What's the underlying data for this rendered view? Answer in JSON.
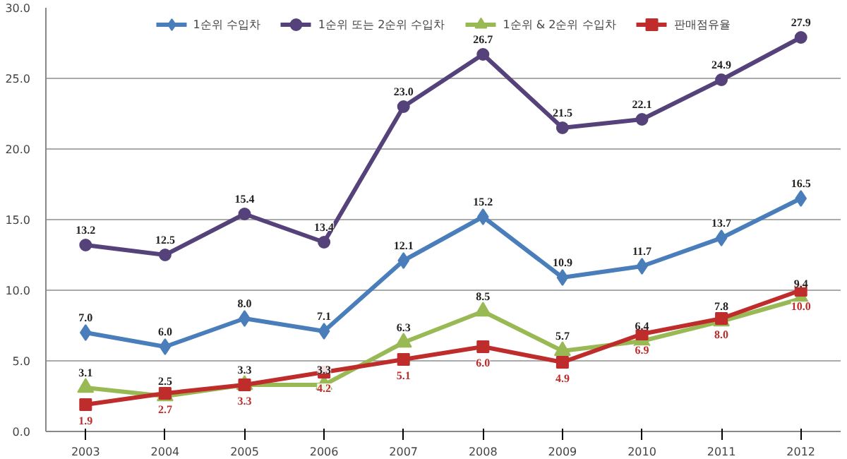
{
  "chart_data": {
    "type": "line",
    "categories": [
      "2003",
      "2004",
      "2005",
      "2006",
      "2007",
      "2008",
      "2009",
      "2010",
      "2011",
      "2012"
    ],
    "ylim": [
      0,
      30
    ],
    "yticks": [
      {
        "value": 0,
        "label": "0.0"
      },
      {
        "value": 5,
        "label": "5.0"
      },
      {
        "value": 10,
        "label": "10.0"
      },
      {
        "value": 15,
        "label": "15.0"
      },
      {
        "value": 20,
        "label": "20.0"
      },
      {
        "value": 25,
        "label": "25.0"
      },
      {
        "value": 30,
        "label": "30.0"
      }
    ],
    "grid": "y",
    "legend": "top",
    "line_style": "solid",
    "series": [
      {
        "name": "1순위 수입차",
        "color": "#4a7ebb",
        "marker": "diamond",
        "values": [
          7.0,
          6.0,
          8.0,
          7.1,
          12.1,
          15.2,
          10.9,
          11.7,
          13.7,
          16.5
        ],
        "value_labels": [
          "7.0",
          "6.0",
          "8.0",
          "7.1",
          "12.1",
          "15.2",
          "10.9",
          "11.7",
          "13.7",
          "16.5"
        ]
      },
      {
        "name": "1순위 또는 2순위 수입차",
        "color": "#56427a",
        "marker": "circle",
        "values": [
          13.2,
          12.5,
          15.4,
          13.4,
          23.0,
          26.7,
          21.5,
          22.1,
          24.9,
          27.9
        ],
        "value_labels": [
          "13.2",
          "12.5",
          "15.4",
          "13.4",
          "23.0",
          "26.7",
          "21.5",
          "22.1",
          "24.9",
          "27.9"
        ]
      },
      {
        "name": "1순위 & 2순위 수입차",
        "color": "#98b954",
        "marker": "triangle",
        "values": [
          3.1,
          2.5,
          3.3,
          3.3,
          6.3,
          8.5,
          5.7,
          6.4,
          7.8,
          9.4
        ],
        "value_labels": [
          "3.1",
          "2.5",
          "3.3",
          "3.3",
          "6.3",
          "8.5",
          "5.7",
          "6.4",
          "7.8",
          "9.4"
        ]
      },
      {
        "name": "판매점유율",
        "color": "#be2c2c",
        "marker": "square",
        "values": [
          1.9,
          2.7,
          3.3,
          4.2,
          5.1,
          6.0,
          4.9,
          6.9,
          8.0,
          10.0
        ],
        "value_labels": [
          "1.9",
          "2.7",
          "3.3",
          "4.2",
          "5.1",
          "6.0",
          "4.9",
          "6.9",
          "8.0",
          "10.0"
        ]
      }
    ]
  }
}
